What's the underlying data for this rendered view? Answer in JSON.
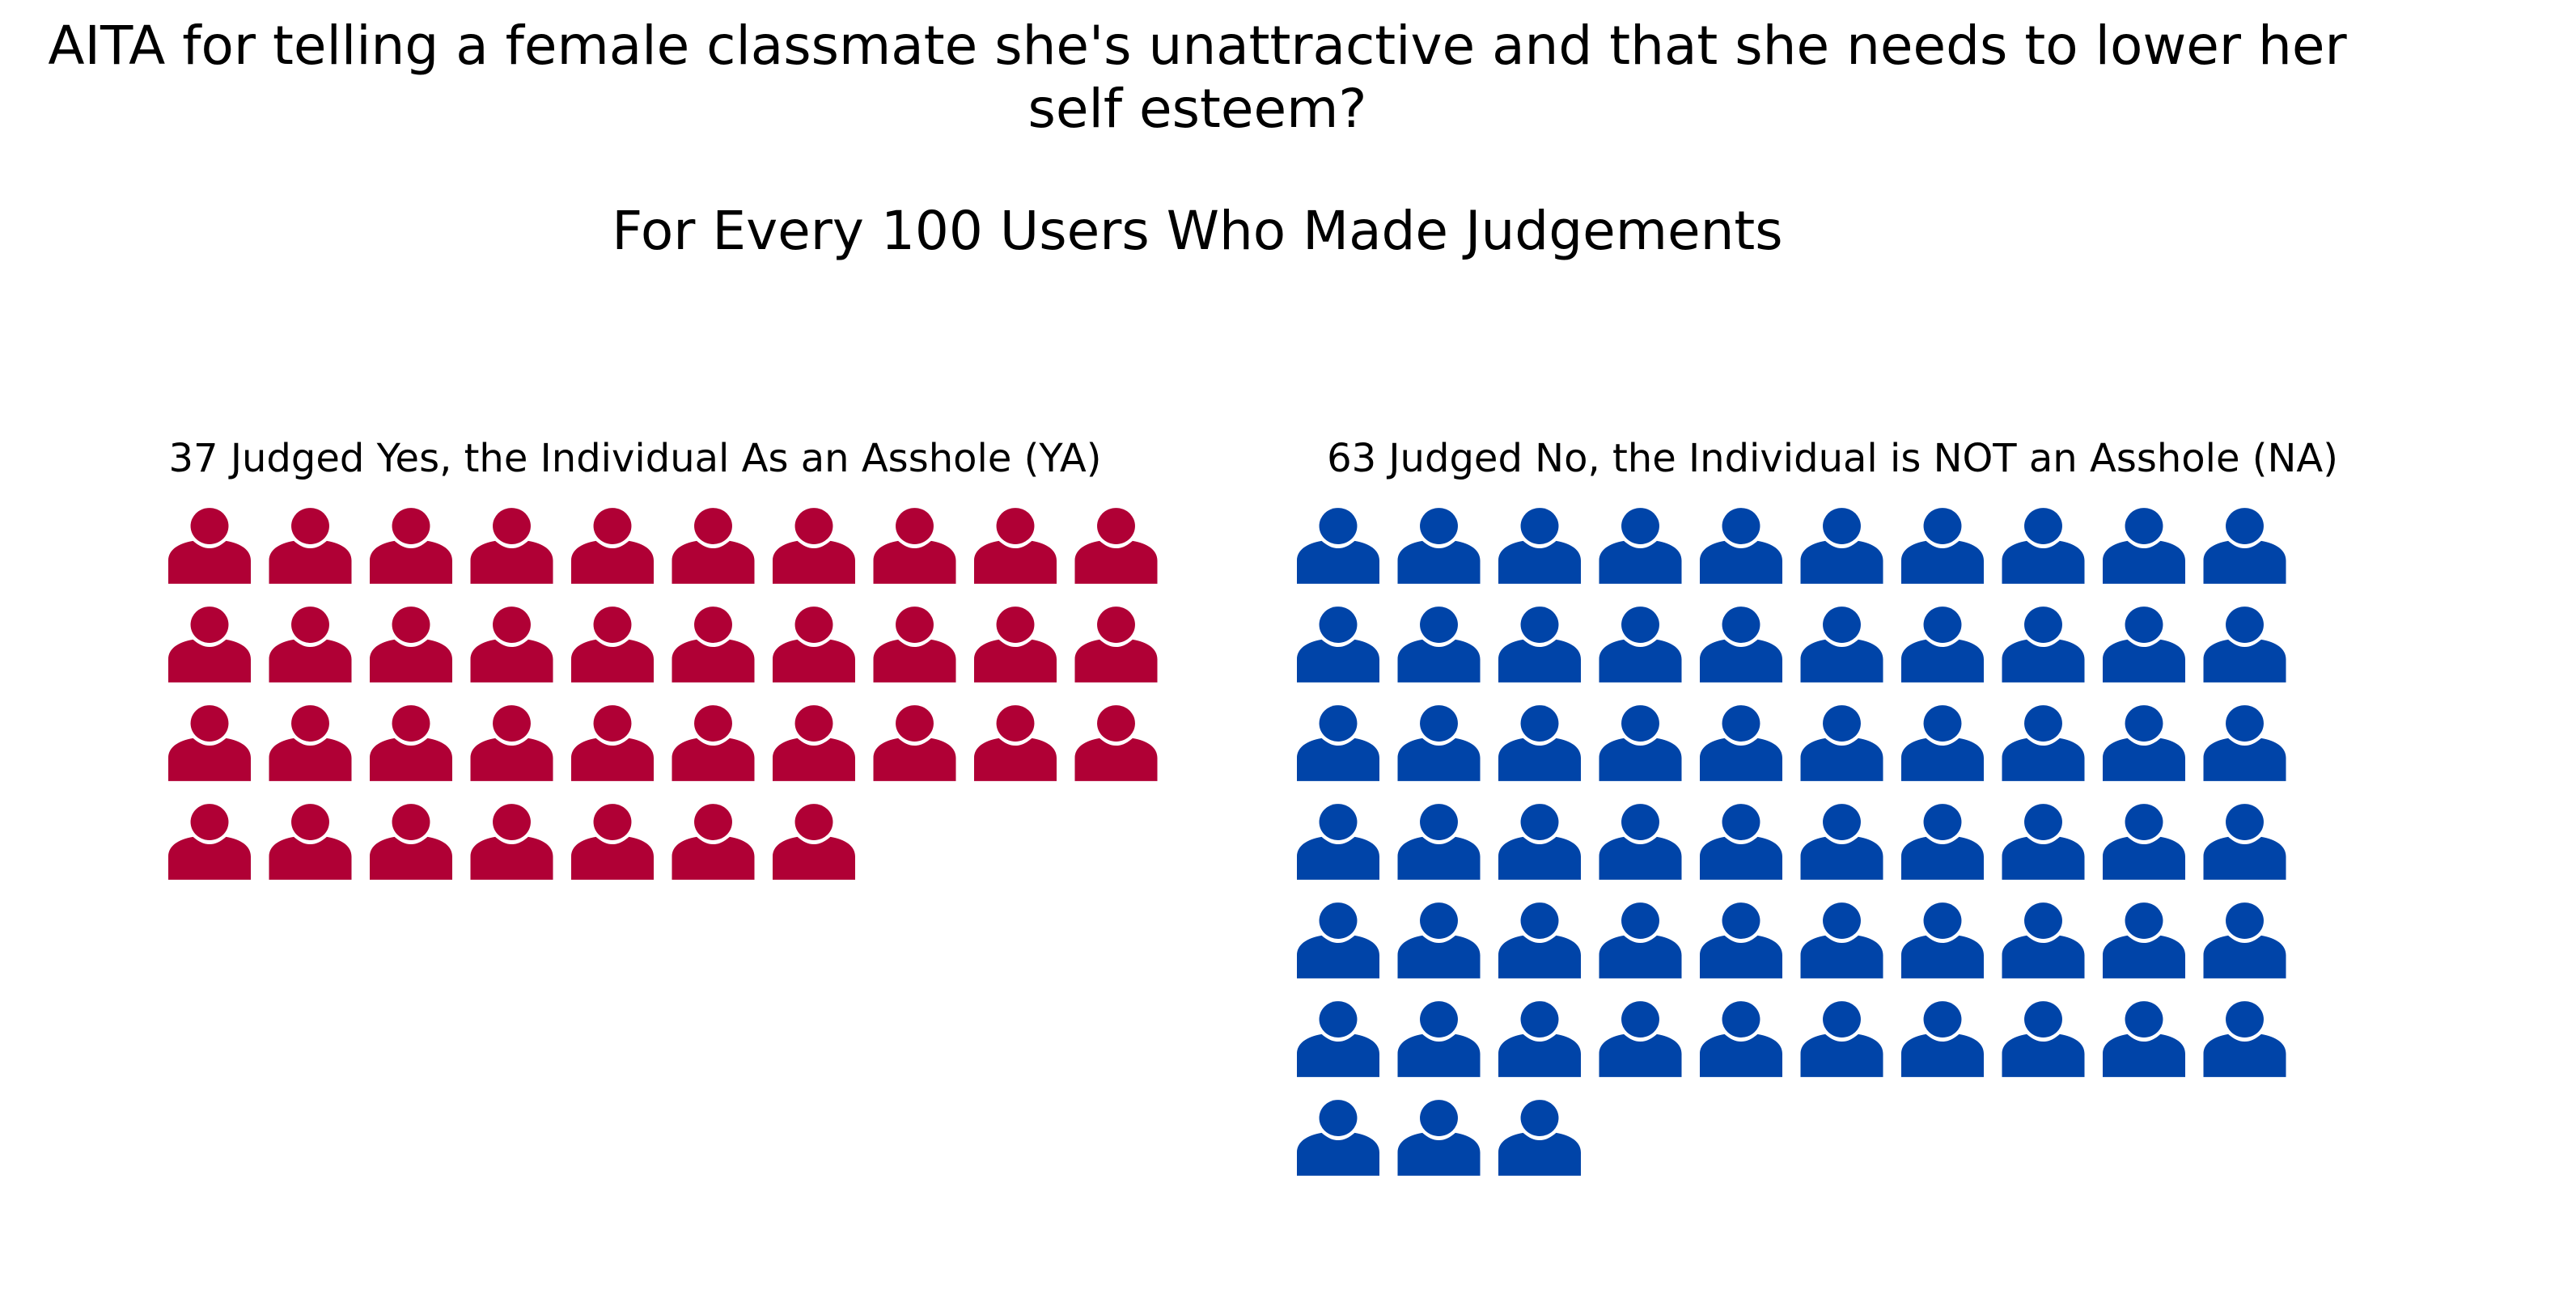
{
  "title": "AITA for telling a female classmate she's unattractive and that she needs to lower her self esteem?",
  "subtitle": "For Every 100 Users Who Made Judgements",
  "colors": {
    "ya": "#b00035",
    "na": "#0044a8"
  },
  "chart_data": {
    "type": "pictogram",
    "unit": "person-icon",
    "total": 100,
    "icons_per_row": 10,
    "title": "AITA for telling a female classmate she's unattractive and that she needs to lower her self esteem?",
    "subtitle": "For Every 100 Users Who Made Judgements",
    "series": [
      {
        "label": "37 Judged Yes, the Individual As an Asshole (YA)",
        "value": 37,
        "color": "#b00035"
      },
      {
        "label": "63 Judged No, the Individual is NOT an Asshole (NA)",
        "value": 63,
        "color": "#0044a8"
      }
    ]
  }
}
